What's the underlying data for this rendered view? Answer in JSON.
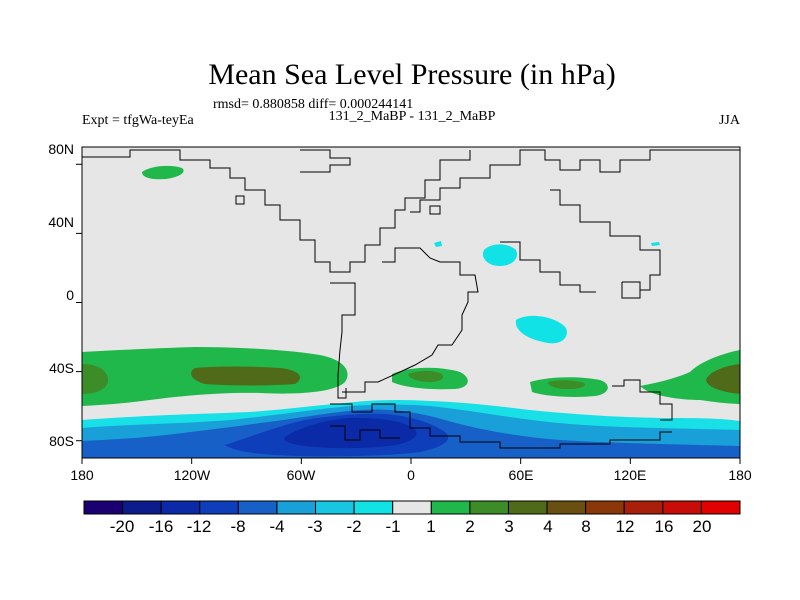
{
  "chart_data": {
    "type": "filled-contour-map",
    "title": "Mean Sea Level Pressure (in hPa)",
    "stats_label": "rmsd= 0.880858 diff= 0.000244141",
    "left_label": "Expt = tfgWa-teyEa",
    "center_label": "131_2_MaBP - 131_2_MaBP",
    "right_label": "JJA",
    "x_ticks": [
      "180",
      "120W",
      "60W",
      "0",
      "60E",
      "120E",
      "180"
    ],
    "y_ticks": [
      "80N",
      "40N",
      "0",
      "40S",
      "80S"
    ],
    "lon_range": [
      -180,
      180
    ],
    "lat_range": [
      -90,
      90
    ],
    "colorbar": {
      "levels": [
        "-20",
        "-16",
        "-12",
        "-8",
        "-4",
        "-3",
        "-2",
        "-1",
        "1",
        "2",
        "3",
        "4",
        "8",
        "12",
        "16",
        "20"
      ],
      "colors": [
        "#1a0070",
        "#0c1c8c",
        "#0a2aa8",
        "#0e3eba",
        "#1660c8",
        "#1aa0d8",
        "#18c6e2",
        "#10e2e6",
        "#e6e6e6",
        "#20b84a",
        "#3c8c28",
        "#4f6b1a",
        "#6a5010",
        "#8a380a",
        "#a8200a",
        "#c80c08",
        "#e00000"
      ]
    },
    "background_class_color": "#e6e6e6",
    "regions": [
      {
        "name": "southern-ocean-low",
        "range": "-4 to -3",
        "lon": [
          -180,
          180
        ],
        "lat": [
          -90,
          -70
        ]
      },
      {
        "name": "antarctic-deep-low",
        "range": "-12 to -8",
        "lon": [
          -70,
          30
        ],
        "lat": [
          -90,
          -77
        ]
      },
      {
        "name": "pacific-high",
        "range": "2 to 4",
        "lon": [
          -180,
          -110
        ],
        "lat": [
          -55,
          -33
        ]
      },
      {
        "name": "atlantic-high",
        "range": "2 to 3",
        "lon": [
          -10,
          30
        ],
        "lat": [
          -50,
          -42
        ]
      },
      {
        "name": "indian-high",
        "range": "2 to 3",
        "lon": [
          60,
          110
        ],
        "lat": [
          -53,
          -45
        ]
      },
      {
        "name": "east-pacific-high",
        "range": "2 to 4",
        "lon": [
          130,
          180
        ],
        "lat": [
          -55,
          -33
        ]
      },
      {
        "name": "arctic-high",
        "range": "1 to 2",
        "lon": [
          -150,
          -135
        ],
        "lat": [
          65,
          70
        ]
      },
      {
        "name": "central-asia-low",
        "range": "-1 to -2",
        "lon": [
          40,
          60
        ],
        "lat": [
          20,
          30
        ]
      },
      {
        "name": "indian-ocean-low",
        "range": "-1 to -2",
        "lon": [
          55,
          85
        ],
        "lat": [
          -20,
          -5
        ]
      }
    ]
  }
}
